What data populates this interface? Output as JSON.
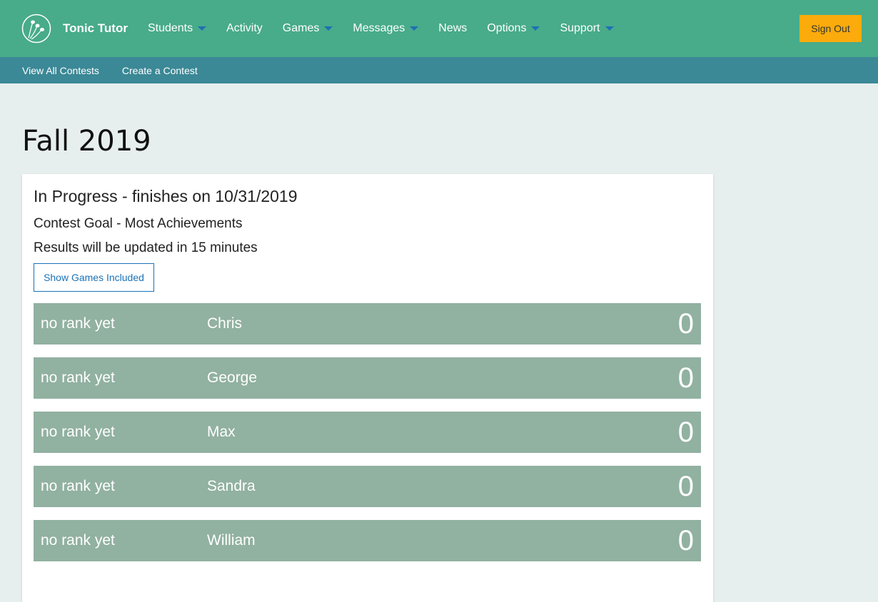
{
  "header": {
    "brand": "Tonic Tutor",
    "nav": [
      {
        "label": "Students",
        "dropdown": true
      },
      {
        "label": "Activity",
        "dropdown": false
      },
      {
        "label": "Games",
        "dropdown": true
      },
      {
        "label": "Messages",
        "dropdown": true
      },
      {
        "label": "News",
        "dropdown": false
      },
      {
        "label": "Options",
        "dropdown": true
      },
      {
        "label": "Support",
        "dropdown": true
      }
    ],
    "sign_out": "Sign Out"
  },
  "subnav": [
    "View All Contests",
    "Create a Contest"
  ],
  "page": {
    "title": "Fall 2019",
    "status": "In Progress - finishes on 10/31/2019",
    "goal": "Contest Goal - Most Achievements",
    "update": "Results will be updated in 15 minutes",
    "show_games": "Show Games Included",
    "rows": [
      {
        "rank": "no rank yet",
        "name": "Chris",
        "score": "0"
      },
      {
        "rank": "no rank yet",
        "name": "George",
        "score": "0"
      },
      {
        "rank": "no rank yet",
        "name": "Max",
        "score": "0"
      },
      {
        "rank": "no rank yet",
        "name": "Sandra",
        "score": "0"
      },
      {
        "rank": "no rank yet",
        "name": "William",
        "score": "0"
      }
    ]
  },
  "colors": {
    "header": "#48ab89",
    "subnav": "#3b8896",
    "sign_out": "#fbab0b",
    "row": "#91b1a1"
  }
}
